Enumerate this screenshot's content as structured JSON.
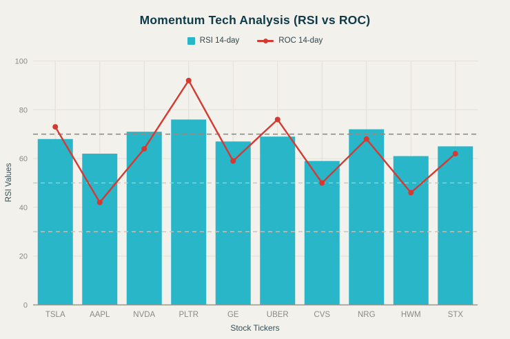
{
  "title": "Momentum Tech Analysis (RSI vs ROC)",
  "chart_data": {
    "type": "bar",
    "title": "Momentum Tech Analysis (RSI vs ROC)",
    "xlabel": "Stock Tickers",
    "ylabel": "RSI Values",
    "categories": [
      "TSLA",
      "AAPL",
      "NVDA",
      "PLTR",
      "GE",
      "UBER",
      "CVS",
      "NRG",
      "HWM",
      "STX"
    ],
    "series": [
      {
        "name": "RSI 14-day",
        "type": "bar",
        "color": "#29b6c8",
        "values": [
          68,
          62,
          71,
          76,
          67,
          69,
          59,
          72,
          61,
          65
        ]
      },
      {
        "name": "ROC 14-day",
        "type": "line",
        "color": "#d43a32",
        "values": [
          73,
          42,
          64,
          92,
          59,
          76,
          50,
          68,
          46,
          62
        ]
      }
    ],
    "ylim": [
      0,
      100
    ],
    "yticks": [
      0,
      20,
      40,
      60,
      80,
      100
    ],
    "reference_lines": [
      {
        "value": 70,
        "style": "dashed",
        "color": "#8e8c85",
        "weight": "strong"
      },
      {
        "value": 50,
        "style": "dashed",
        "color": "#c6c3ba",
        "weight": "light"
      },
      {
        "value": 30,
        "style": "dashed",
        "color": "#c6c3ba",
        "weight": "light"
      }
    ],
    "grid": true,
    "legend_position": "top"
  },
  "colors": {
    "background": "#f2f1eb",
    "bar": "#29b6c8",
    "line": "#d43a32",
    "title_text": "#0e3a4a",
    "axis_label_text": "#33505a",
    "tick_text": "#8a8a86",
    "gridline": "#e3e0d8",
    "axis_line": "#98968e"
  }
}
